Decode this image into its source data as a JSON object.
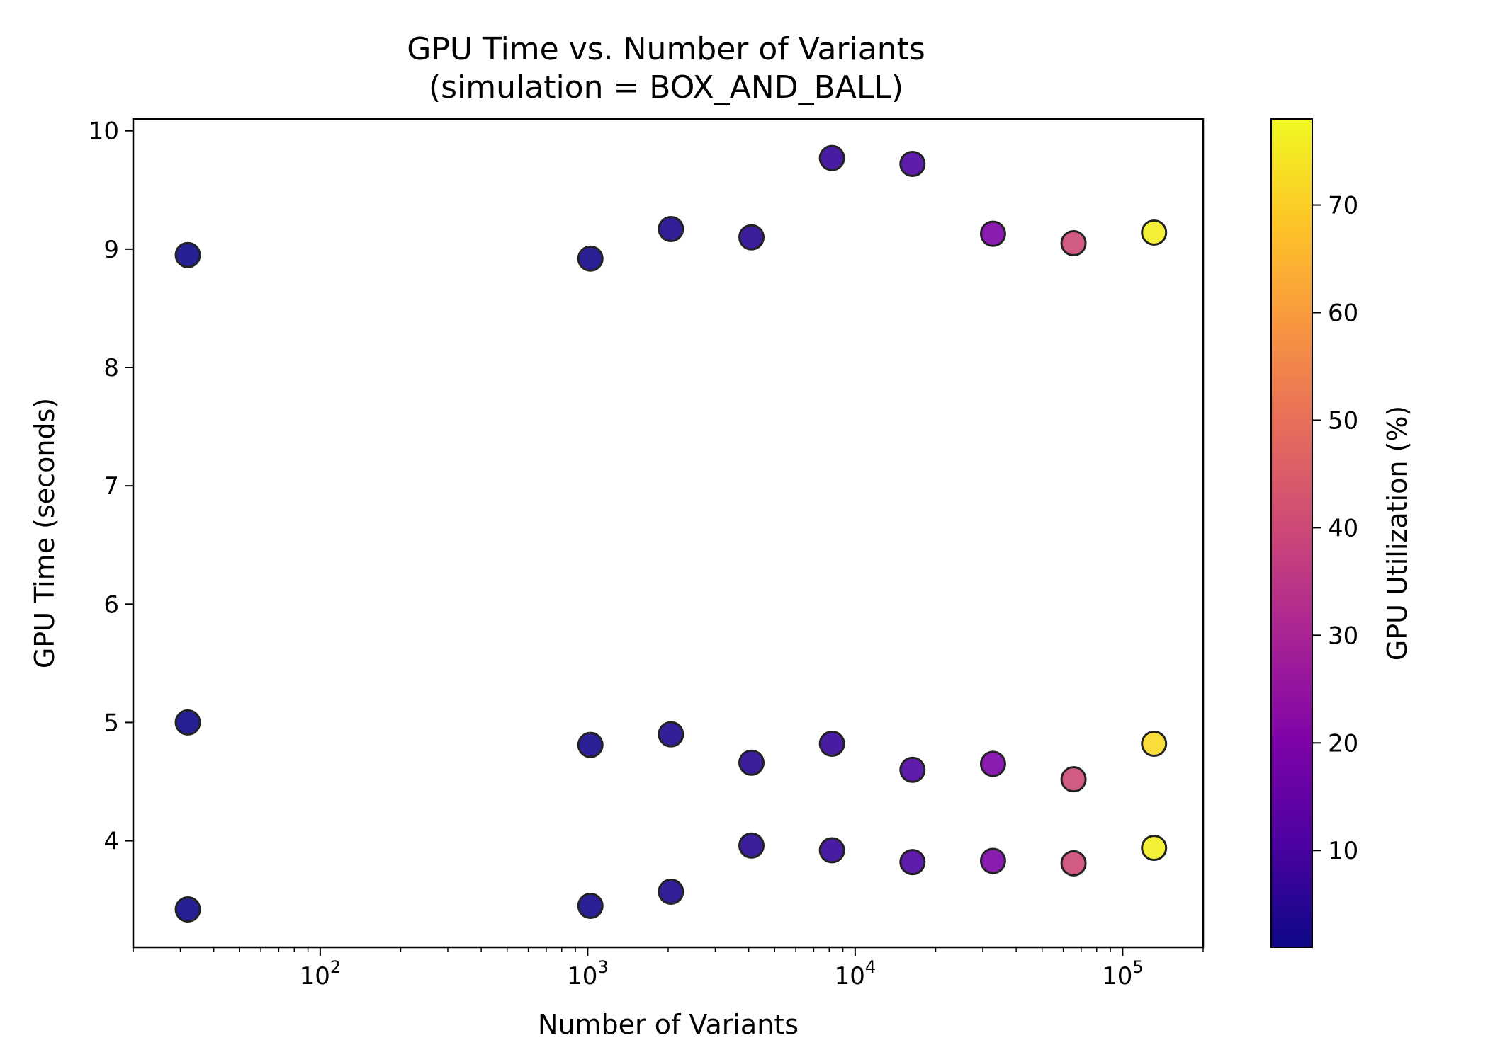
{
  "chart_data": {
    "type": "scatter",
    "title_lines": [
      "GPU Time vs. Number of Variants",
      "(simulation = BOX_AND_BALL)"
    ],
    "xlabel": "Number of Variants",
    "ylabel": "GPU Time (seconds)",
    "colorbar_label": "GPU Utilization (%)",
    "x_scale": "log",
    "xlim": [
      20,
      200000
    ],
    "ylim": [
      3.1,
      10.1
    ],
    "x_ticks": [
      {
        "value": 100,
        "base": "10",
        "exp": "2"
      },
      {
        "value": 1000,
        "base": "10",
        "exp": "3"
      },
      {
        "value": 10000,
        "base": "10",
        "exp": "4"
      },
      {
        "value": 100000,
        "base": "10",
        "exp": "5"
      }
    ],
    "y_ticks": [
      4,
      5,
      6,
      7,
      8,
      9,
      10
    ],
    "colorbar_range": [
      1,
      78
    ],
    "colorbar_ticks": [
      10,
      20,
      30,
      40,
      50,
      60,
      70
    ],
    "colormap": "plasma",
    "marker_edge_color": "#222222",
    "points": [
      {
        "x": 32,
        "y": 8.95,
        "c": 1
      },
      {
        "x": 32,
        "y": 5.0,
        "c": 1
      },
      {
        "x": 32,
        "y": 3.42,
        "c": 1
      },
      {
        "x": 1024,
        "y": 8.92,
        "c": 2
      },
      {
        "x": 1024,
        "y": 4.81,
        "c": 2
      },
      {
        "x": 1024,
        "y": 3.45,
        "c": 2
      },
      {
        "x": 2048,
        "y": 9.17,
        "c": 3
      },
      {
        "x": 2048,
        "y": 4.9,
        "c": 3
      },
      {
        "x": 2048,
        "y": 3.57,
        "c": 3
      },
      {
        "x": 4096,
        "y": 9.1,
        "c": 5
      },
      {
        "x": 4096,
        "y": 4.66,
        "c": 5
      },
      {
        "x": 4096,
        "y": 3.96,
        "c": 5
      },
      {
        "x": 8192,
        "y": 9.77,
        "c": 7
      },
      {
        "x": 8192,
        "y": 4.82,
        "c": 7
      },
      {
        "x": 8192,
        "y": 3.92,
        "c": 7
      },
      {
        "x": 16384,
        "y": 9.72,
        "c": 11
      },
      {
        "x": 16384,
        "y": 4.6,
        "c": 11
      },
      {
        "x": 16384,
        "y": 3.82,
        "c": 11
      },
      {
        "x": 32768,
        "y": 9.13,
        "c": 20
      },
      {
        "x": 32768,
        "y": 4.65,
        "c": 20
      },
      {
        "x": 32768,
        "y": 3.83,
        "c": 20
      },
      {
        "x": 65536,
        "y": 9.05,
        "c": 40
      },
      {
        "x": 65536,
        "y": 4.52,
        "c": 40
      },
      {
        "x": 65536,
        "y": 3.81,
        "c": 40
      },
      {
        "x": 131072,
        "y": 9.14,
        "c": 76
      },
      {
        "x": 131072,
        "y": 4.82,
        "c": 72
      },
      {
        "x": 131072,
        "y": 3.94,
        "c": 76
      }
    ]
  }
}
